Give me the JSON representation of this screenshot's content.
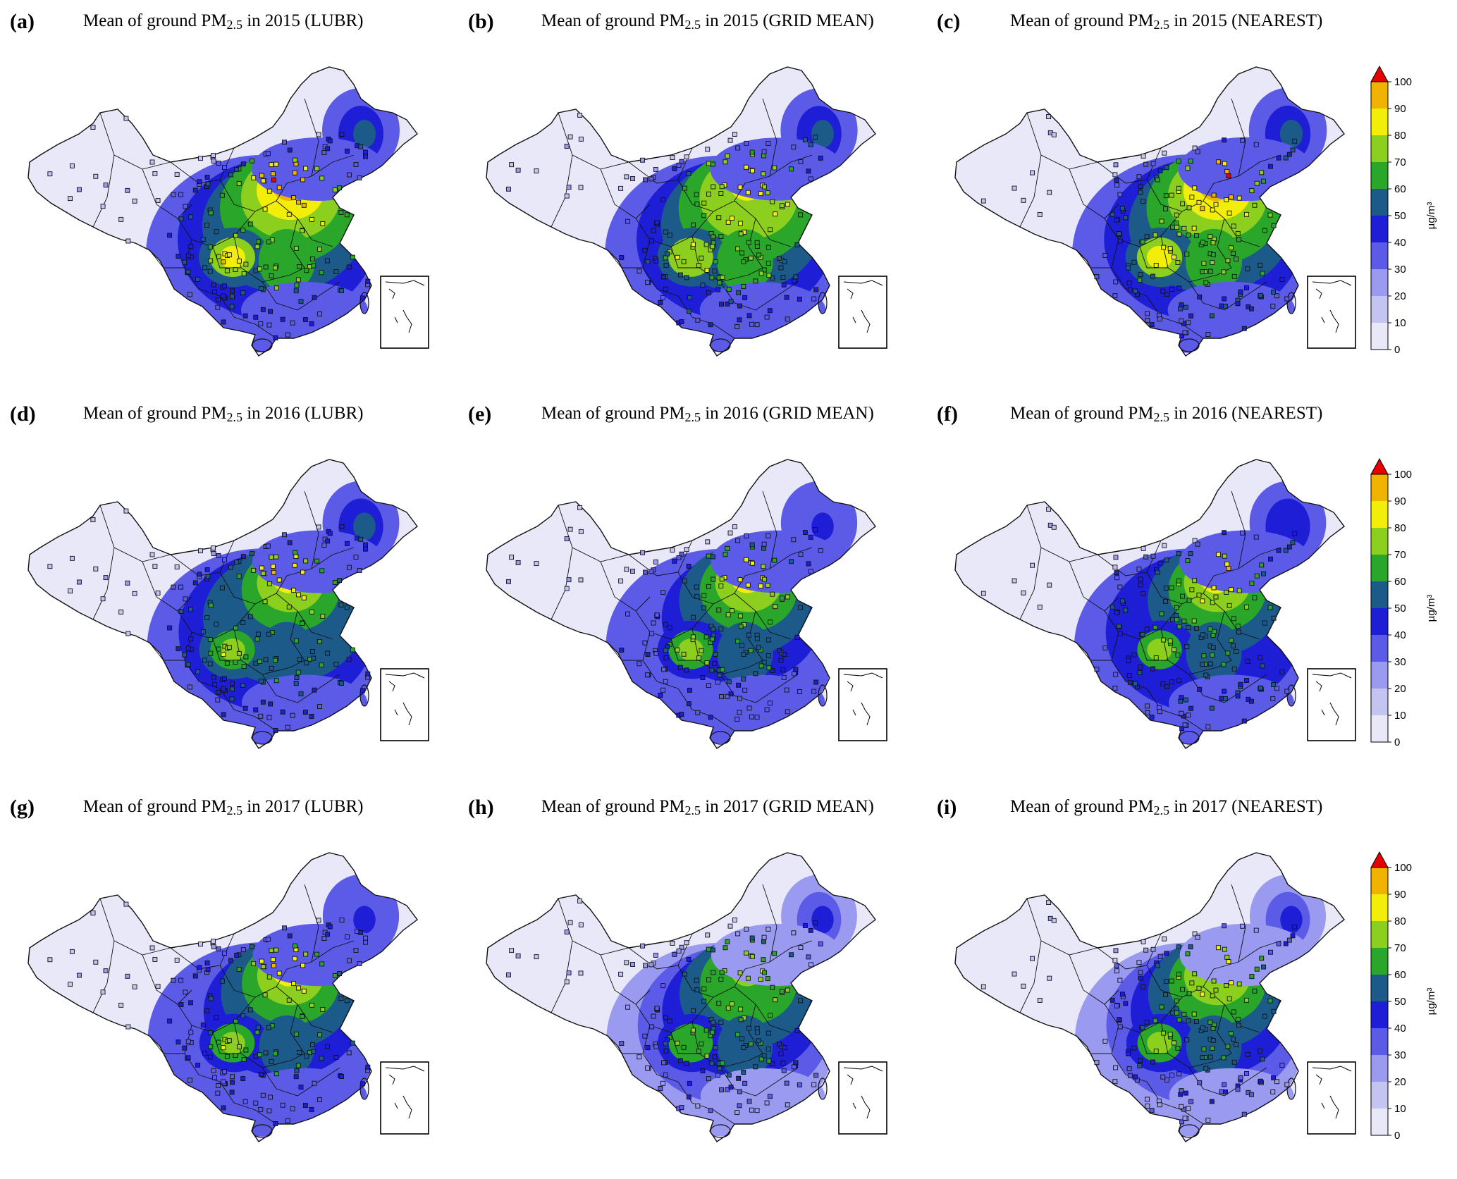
{
  "figure": {
    "panels": [
      {
        "label": "(a)",
        "title_pre": "Mean of ground PM",
        "title_sub": "2.5",
        "title_post": " in 2015 (LUBR)",
        "year": 2015,
        "method": "LUBR",
        "intensity": 1.0
      },
      {
        "label": "(b)",
        "title_pre": "Mean of ground PM",
        "title_sub": "2.5",
        "title_post": " in 2015 (GRID MEAN)",
        "year": 2015,
        "method": "GRID MEAN",
        "intensity": 0.93
      },
      {
        "label": "(c)",
        "title_pre": "Mean of ground PM",
        "title_sub": "2.5",
        "title_post": " in 2015 (NEAREST)",
        "year": 2015,
        "method": "NEAREST",
        "intensity": 1.05
      },
      {
        "label": "(d)",
        "title_pre": "Mean of ground PM",
        "title_sub": "2.5",
        "title_post": " in 2016 (LUBR)",
        "year": 2016,
        "method": "LUBR",
        "intensity": 0.9
      },
      {
        "label": "(e)",
        "title_pre": "Mean of ground PM",
        "title_sub": "2.5",
        "title_post": " in 2016 (GRID MEAN)",
        "year": 2016,
        "method": "GRID MEAN",
        "intensity": 0.85
      },
      {
        "label": "(f)",
        "title_pre": "Mean of ground PM",
        "title_sub": "2.5",
        "title_post": " in 2016 (NEAREST)",
        "year": 2016,
        "method": "NEAREST",
        "intensity": 0.88
      },
      {
        "label": "(g)",
        "title_pre": "Mean of ground PM",
        "title_sub": "2.5",
        "title_post": " in 2017 (LUBR)",
        "year": 2017,
        "method": "LUBR",
        "intensity": 0.84
      },
      {
        "label": "(h)",
        "title_pre": "Mean of ground PM",
        "title_sub": "2.5",
        "title_post": " in 2017 (GRID MEAN)",
        "year": 2017,
        "method": "GRID MEAN",
        "intensity": 0.8
      },
      {
        "label": "(i)",
        "title_pre": "Mean of ground PM",
        "title_sub": "2.5",
        "title_post": " in 2017 (NEAREST)",
        "year": 2017,
        "method": "NEAREST",
        "intensity": 0.82
      }
    ],
    "colorbar": {
      "ticks": [
        "0",
        "10",
        "20",
        "30",
        "40",
        "50",
        "60",
        "70",
        "80",
        "90",
        "100"
      ],
      "unit_label": "µg/m³",
      "extend": "max",
      "levels": [
        0,
        10,
        20,
        30,
        40,
        50,
        60,
        70,
        80,
        90,
        100
      ],
      "colors": [
        "#e8e8f8",
        "#c4c4f0",
        "#9a9af0",
        "#5b5be8",
        "#1e1ed6",
        "#1c5a8a",
        "#2aa62a",
        "#8ccf1e",
        "#f2ee0a",
        "#f2b200",
        "#e60000"
      ]
    },
    "map_colors": {
      "outline": "#111111",
      "site_edge": "#111111"
    }
  }
}
